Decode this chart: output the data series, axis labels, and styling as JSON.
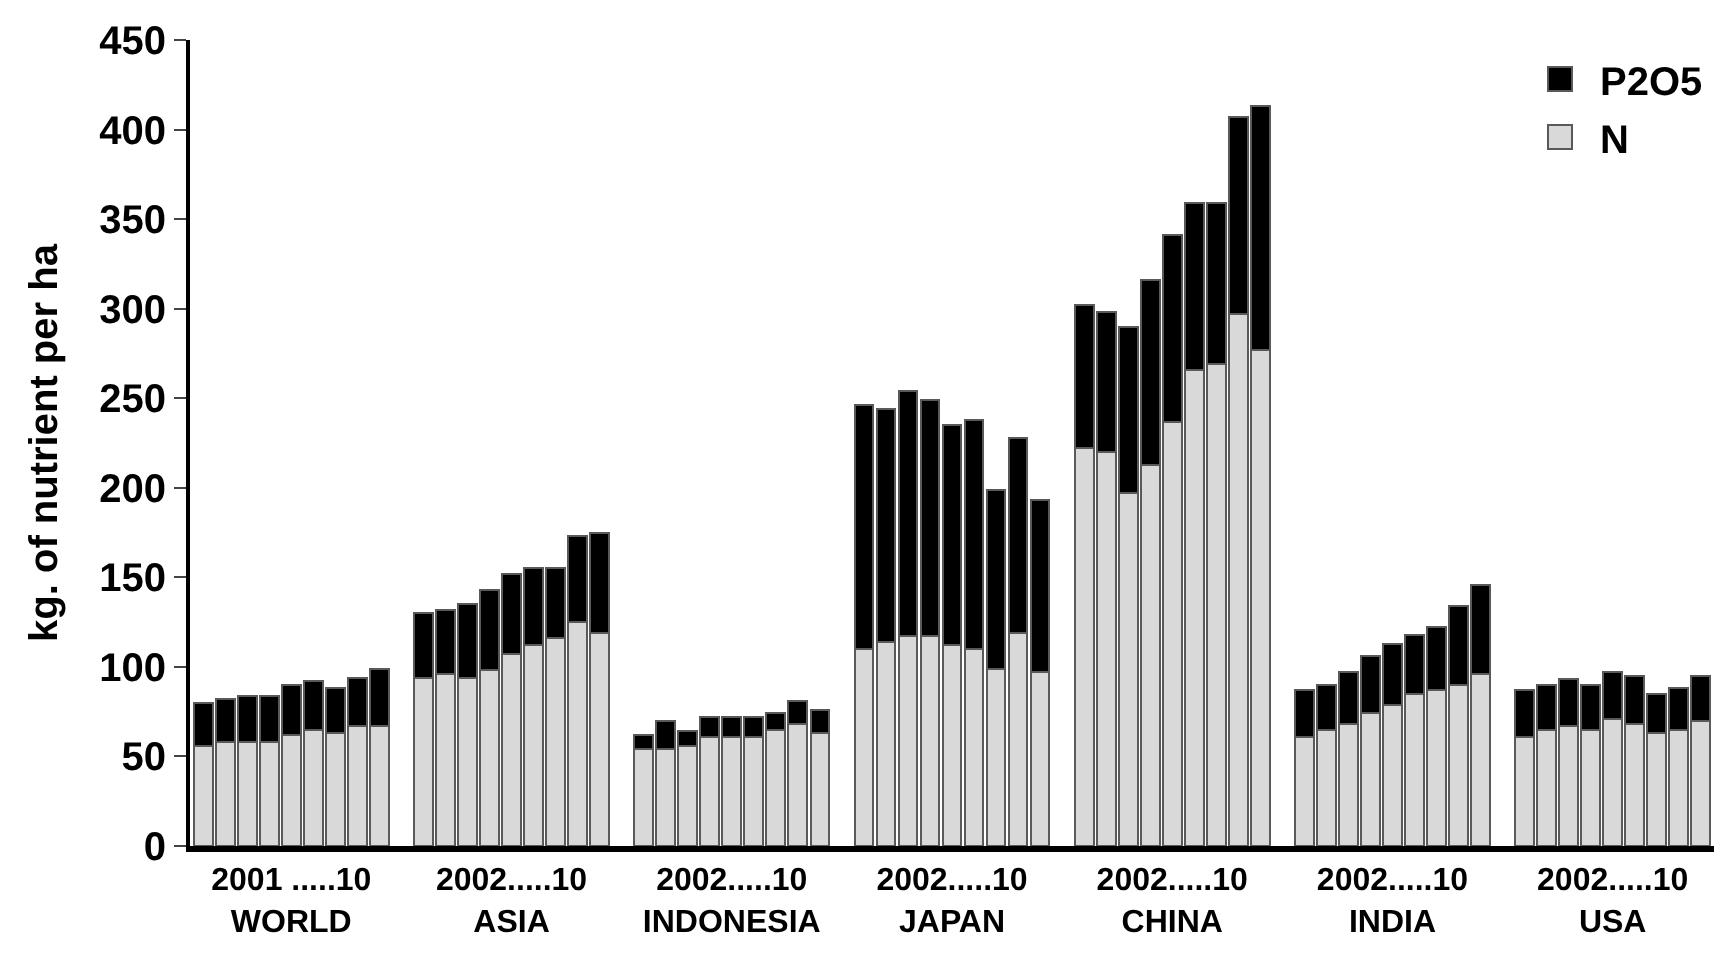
{
  "chart_data": {
    "type": "bar",
    "stacked": true,
    "ylabel": "kg. of nutrient per ha",
    "ylim": [
      0,
      450
    ],
    "yticks": [
      0,
      50,
      100,
      150,
      200,
      250,
      300,
      350,
      400,
      450
    ],
    "legend": "top right",
    "categories": [
      null,
      null,
      null,
      null,
      "2001 .....10\nWORLD",
      null,
      null,
      null,
      null,
      null,
      null,
      null,
      null,
      null,
      "2002.....10\nASIA",
      null,
      null,
      null,
      null,
      null,
      null,
      null,
      null,
      null,
      "2002.....10\nINDONESIA",
      null,
      null,
      null,
      null,
      null,
      null,
      null,
      null,
      null,
      "2002.....10\nJAPAN",
      null,
      null,
      null,
      null,
      null,
      null,
      null,
      null,
      null,
      "2002.....10\nCHINA",
      null,
      null,
      null,
      null,
      null,
      null,
      null,
      null,
      null,
      "2002.....10\nINDIA",
      null,
      null,
      null,
      null,
      null,
      null,
      null,
      null,
      null,
      "2002.....10\nUSA",
      null,
      null,
      null,
      null
    ],
    "series": [
      {
        "name": "N",
        "color": "#d9d9d9",
        "values": [
          56,
          58,
          58,
          58,
          62,
          65,
          63,
          67,
          67,
          null,
          94,
          96,
          94,
          98,
          107,
          112,
          116,
          125,
          119,
          null,
          54,
          54,
          56,
          61,
          61,
          61,
          65,
          68,
          63,
          null,
          110,
          114,
          117,
          117,
          112,
          110,
          99,
          119,
          97,
          null,
          222,
          220,
          197,
          213,
          237,
          266,
          269,
          297,
          277,
          null,
          61,
          65,
          68,
          74,
          79,
          85,
          87,
          90,
          96,
          null,
          61,
          65,
          67,
          65,
          71,
          68,
          63,
          65,
          70
        ]
      },
      {
        "name": "P2O5",
        "color": "#000000",
        "values": [
          24,
          24,
          26,
          26,
          28,
          27,
          25,
          27,
          32,
          null,
          36,
          36,
          41,
          45,
          45,
          43,
          39,
          48,
          56,
          null,
          8,
          16,
          8,
          11,
          11,
          11,
          9,
          13,
          13,
          null,
          136,
          130,
          137,
          132,
          123,
          128,
          100,
          109,
          96,
          null,
          80,
          78,
          93,
          103,
          104,
          93,
          90,
          110,
          136,
          null,
          26,
          25,
          29,
          32,
          34,
          33,
          35,
          44,
          50,
          null,
          26,
          25,
          26,
          25,
          26,
          27,
          22,
          23,
          25
        ]
      }
    ]
  }
}
